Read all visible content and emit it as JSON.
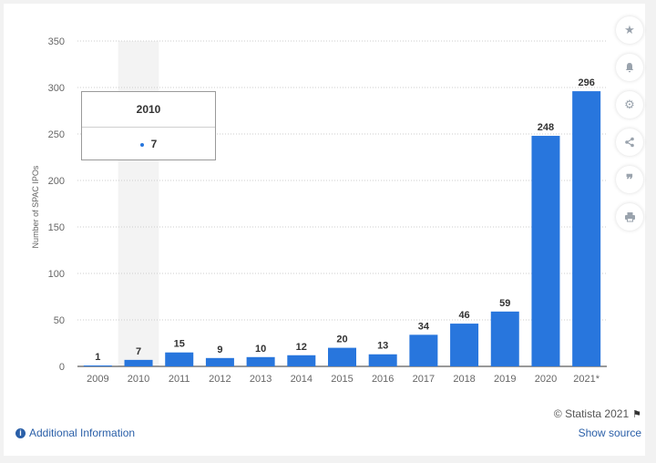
{
  "chart_data": {
    "type": "bar",
    "categories": [
      "2009",
      "2010",
      "2011",
      "2012",
      "2013",
      "2014",
      "2015",
      "2016",
      "2017",
      "2018",
      "2019",
      "2020",
      "2021*"
    ],
    "values": [
      1,
      7,
      15,
      9,
      10,
      12,
      20,
      13,
      34,
      46,
      59,
      248,
      296
    ],
    "ylabel": "Number of SPAC IPOs",
    "xlabel": "",
    "ylim": [
      0,
      350
    ],
    "yticks": [
      0,
      50,
      100,
      150,
      200,
      250,
      300,
      350
    ],
    "grid": true,
    "bar_color": "#2876dd"
  },
  "tooltip": {
    "title": "2010",
    "value": "7"
  },
  "toolbar": {
    "icons": [
      "star-icon",
      "bell-icon",
      "gear-icon",
      "share-icon",
      "quote-icon",
      "print-icon"
    ]
  },
  "footer": {
    "additional_info": "Additional Information",
    "credit": "© Statista 2021",
    "show_source": "Show source"
  }
}
